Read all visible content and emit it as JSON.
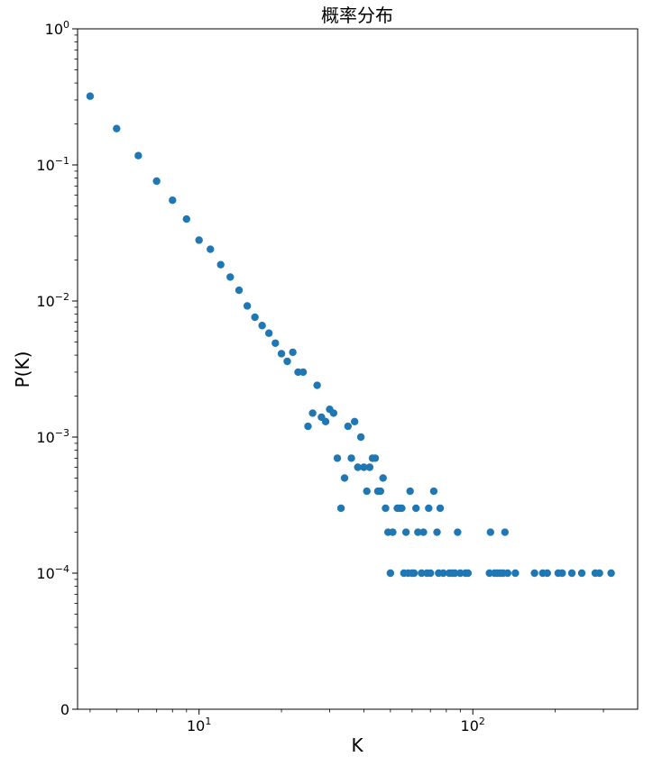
{
  "chart_data": {
    "type": "scatter",
    "title": "概率分布",
    "xlabel": "K",
    "ylabel": "P(K)",
    "x_scale": "log",
    "y_scale": "log",
    "xlim": [
      3.6,
      400
    ],
    "ylim": [
      1e-05,
      1
    ],
    "grid": false,
    "color": "#1f77b4",
    "x_ticks": [
      {
        "value": 10,
        "base": "10",
        "exp": "1"
      },
      {
        "value": 100,
        "base": "10",
        "exp": "2"
      }
    ],
    "y_ticks": [
      {
        "value": 1,
        "base": "10",
        "exp": "0"
      },
      {
        "value": 0.1,
        "base": "10",
        "exp": "−1"
      },
      {
        "value": 0.01,
        "base": "10",
        "exp": "−2"
      },
      {
        "value": 0.001,
        "base": "10",
        "exp": "−3"
      },
      {
        "value": 0.0001,
        "base": "10",
        "exp": "−4"
      },
      {
        "value": 1e-05,
        "base": "0",
        "exp": ""
      }
    ],
    "points": [
      [
        4,
        0.32
      ],
      [
        5,
        0.185
      ],
      [
        6,
        0.117
      ],
      [
        7,
        0.076
      ],
      [
        8,
        0.055
      ],
      [
        9,
        0.04
      ],
      [
        10,
        0.028
      ],
      [
        11,
        0.024
      ],
      [
        12,
        0.0185
      ],
      [
        13,
        0.015
      ],
      [
        14,
        0.012
      ],
      [
        15,
        0.0092
      ],
      [
        16,
        0.0076
      ],
      [
        17,
        0.0066
      ],
      [
        18,
        0.0058
      ],
      [
        19,
        0.0049
      ],
      [
        20,
        0.0041
      ],
      [
        21,
        0.0036
      ],
      [
        22,
        0.0042
      ],
      [
        23,
        0.003
      ],
      [
        24,
        0.003
      ],
      [
        25,
        0.0012
      ],
      [
        26,
        0.0015
      ],
      [
        27,
        0.0024
      ],
      [
        28,
        0.0014
      ],
      [
        29,
        0.0013
      ],
      [
        30,
        0.0016
      ],
      [
        31,
        0.0015
      ],
      [
        32,
        0.0007
      ],
      [
        33,
        0.0003
      ],
      [
        34,
        0.0005
      ],
      [
        35,
        0.0012
      ],
      [
        36,
        0.0007
      ],
      [
        37,
        0.0013
      ],
      [
        38,
        0.0006
      ],
      [
        39,
        0.001
      ],
      [
        40,
        0.0006
      ],
      [
        41,
        0.0004
      ],
      [
        42,
        0.0006
      ],
      [
        43,
        0.0007
      ],
      [
        44,
        0.0007
      ],
      [
        45,
        0.0004
      ],
      [
        46,
        0.0004
      ],
      [
        47,
        0.0005
      ],
      [
        48,
        0.0003
      ],
      [
        49,
        0.0002
      ],
      [
        50,
        0.0001
      ],
      [
        51,
        0.0002
      ],
      [
        53,
        0.0003
      ],
      [
        54,
        0.0003
      ],
      [
        55,
        0.0003
      ],
      [
        56,
        0.0001
      ],
      [
        57,
        0.0002
      ],
      [
        58,
        0.0001
      ],
      [
        59,
        0.0004
      ],
      [
        60,
        0.0001
      ],
      [
        61,
        0.0001
      ],
      [
        62,
        0.0003
      ],
      [
        63,
        0.0002
      ],
      [
        65,
        0.0001
      ],
      [
        66,
        0.0002
      ],
      [
        68,
        0.0001
      ],
      [
        69,
        0.0003
      ],
      [
        70,
        0.0001
      ],
      [
        72,
        0.0004
      ],
      [
        74,
        0.0002
      ],
      [
        75,
        0.0001
      ],
      [
        76,
        0.0003
      ],
      [
        78,
        0.0001
      ],
      [
        82,
        0.0001
      ],
      [
        84,
        0.0001
      ],
      [
        86,
        0.0001
      ],
      [
        88,
        0.0002
      ],
      [
        90,
        0.0001
      ],
      [
        94,
        0.0001
      ],
      [
        96,
        0.0001
      ],
      [
        115,
        0.0001
      ],
      [
        116,
        0.0002
      ],
      [
        120,
        0.0001
      ],
      [
        123,
        0.0001
      ],
      [
        126,
        0.0001
      ],
      [
        129,
        0.0001
      ],
      [
        131,
        0.0002
      ],
      [
        134,
        0.0001
      ],
      [
        143,
        0.0001
      ],
      [
        168,
        0.0001
      ],
      [
        180,
        0.0001
      ],
      [
        187,
        0.0001
      ],
      [
        205,
        0.0001
      ],
      [
        212,
        0.0001
      ],
      [
        230,
        0.0001
      ],
      [
        250,
        0.0001
      ],
      [
        280,
        0.0001
      ],
      [
        290,
        0.0001
      ],
      [
        320,
        0.0001
      ]
    ]
  }
}
